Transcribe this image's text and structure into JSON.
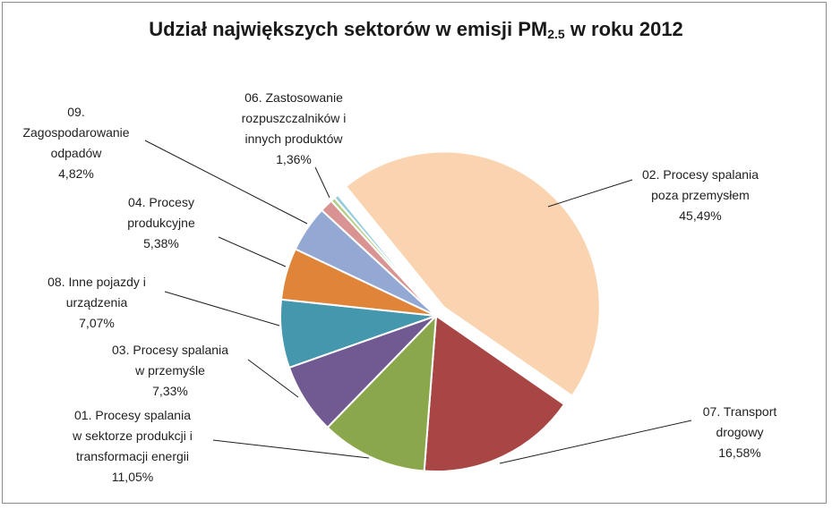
{
  "chart_data": {
    "type": "pie",
    "title_main": "Udział największych sektorów w emisji PM",
    "title_sub": "2.5",
    "title_tail": " w roku 2012",
    "slices": [
      {
        "lines": [
          "02. Procesy spalania",
          "poza przemysłem"
        ],
        "value_label": "45,49%",
        "value": 45.49,
        "color": "#fad4b0",
        "exploded": true
      },
      {
        "lines": [
          "07. Transport",
          "drogowy"
        ],
        "value_label": "16,58%",
        "value": 16.58,
        "color": "#a84645",
        "exploded": false
      },
      {
        "lines": [
          "01. Procesy spalania",
          "w sektorze produkcji i",
          "transformacji energii"
        ],
        "value_label": "11,05%",
        "value": 11.05,
        "color": "#8ba74c",
        "exploded": false
      },
      {
        "lines": [
          "03. Procesy spalania",
          "w przemyśle"
        ],
        "value_label": "7,33%",
        "value": 7.33,
        "color": "#705a91",
        "exploded": false
      },
      {
        "lines": [
          "08. Inne pojazdy i",
          "urządzenia"
        ],
        "value_label": "7,07%",
        "value": 7.07,
        "color": "#4497ad",
        "exploded": false
      },
      {
        "lines": [
          "04. Procesy",
          "produkcyjne"
        ],
        "value_label": "5,38%",
        "value": 5.38,
        "color": "#e0843a",
        "exploded": false
      },
      {
        "lines": [
          "09.",
          "Zagospodarowanie",
          "odpadów"
        ],
        "value_label": "4,82%",
        "value": 4.82,
        "color": "#93a9d4",
        "exploded": false
      },
      {
        "lines": [
          "06. Zastosowanie",
          "rozpuszczalników i",
          "innych produktów"
        ],
        "value_label": "1,36%",
        "value": 1.36,
        "color": "#d99392",
        "exploded": false
      },
      {
        "lines": [],
        "value_label": "",
        "value": 0.46,
        "color": "#b8cf8a",
        "exploded": false
      },
      {
        "lines": [],
        "value_label": "",
        "value": 0.46,
        "color": "#93cddd",
        "exploded": false
      }
    ]
  }
}
